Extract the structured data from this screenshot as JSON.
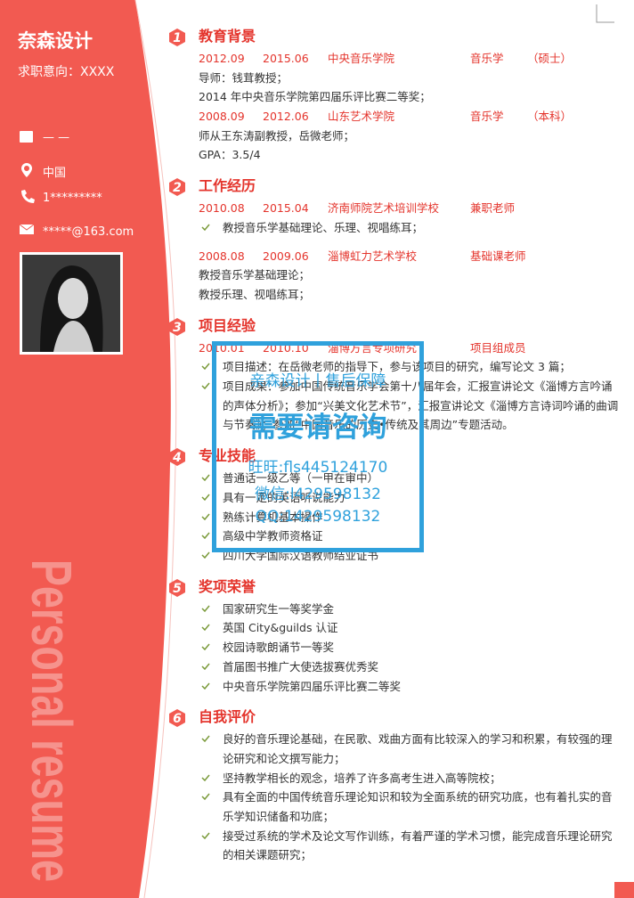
{
  "sidebar": {
    "name": "奈森设计",
    "intention": "求职意向：XXXX",
    "birth": "—  —",
    "location": "中国",
    "phone": "1*********",
    "email": "*****@163.com",
    "deco": "Personal resume"
  },
  "sections": [
    {
      "number": "1",
      "title": "教育背景",
      "rows": [
        {
          "kind": "entry",
          "cells": [
            "2012.09",
            "2015.06",
            "中央音乐学院",
            "音乐学",
            "（硕士）"
          ]
        },
        {
          "kind": "text",
          "text": "导师：钱茸教授；"
        },
        {
          "kind": "text",
          "text": "2014 年中央音乐学院第四届乐评比赛二等奖；"
        },
        {
          "kind": "entry",
          "cells": [
            "2008.09",
            "2012.06",
            "山东艺术学院",
            "音乐学",
            "（本科）"
          ]
        },
        {
          "kind": "text",
          "text": "师从王东涛副教授，岳微老师；"
        },
        {
          "kind": "text",
          "text": "GPA：3.5/4"
        }
      ]
    },
    {
      "number": "2",
      "title": "工作经历",
      "rows": [
        {
          "kind": "entry",
          "cells": [
            "2010.08",
            "2015.04",
            "济南师院艺术培训学校",
            "兼职老师"
          ]
        },
        {
          "kind": "bullet",
          "text": "教授音乐学基础理论、乐理、视唱练耳；"
        },
        {
          "kind": "entry",
          "cells": [
            "2008.08",
            "2009.06",
            "淄博虹力艺术学校",
            "基础课老师"
          ]
        },
        {
          "kind": "text",
          "text": "教授音乐学基础理论；"
        },
        {
          "kind": "text",
          "text": "教授乐理、视唱练耳；"
        }
      ]
    },
    {
      "number": "3",
      "title": "项目经验",
      "rows": [
        {
          "kind": "entry",
          "cells": [
            "2010.01",
            "2010.10",
            "淄博方言专项研究",
            "项目组成员"
          ]
        },
        {
          "kind": "bullet",
          "text": "项目描述：在岳微老师的指导下，参与该项目的研究，编写论文 3 篇；"
        },
        {
          "kind": "bullet",
          "text": "项目成果：参加中国传统音乐学会第十八届年会，汇报宣讲论文《淄博方言吟诵的声体分析》；参加“兴美文化艺术节”，汇报宣讲论文《淄博方言诗词吟诵的曲调与节奏》；参加“中国音乐的历史•传统及其周边”专题活动。"
        }
      ]
    },
    {
      "number": "4",
      "title": "专业技能",
      "rows": [
        {
          "kind": "bullet",
          "text": "普通话一级乙等（一甲在审中）"
        },
        {
          "kind": "bullet",
          "text": "具有一定的英语听说能力"
        },
        {
          "kind": "bullet",
          "text": "熟练计算机基本操作"
        },
        {
          "kind": "bullet",
          "text": "高级中学教师资格证"
        },
        {
          "kind": "bullet",
          "text": "四川大学国际汉语教师结业证书"
        }
      ]
    },
    {
      "number": "5",
      "title": "奖项荣誉",
      "rows": [
        {
          "kind": "bullet",
          "text": "国家研究生一等奖学金"
        },
        {
          "kind": "bullet",
          "text": "英国 City&guilds 认证"
        },
        {
          "kind": "bullet",
          "text": "校园诗歌朗诵节一等奖"
        },
        {
          "kind": "bullet",
          "text": "首届图书推广大使选拔赛优秀奖"
        },
        {
          "kind": "bullet",
          "text": "中央音乐学院第四届乐评比赛二等奖"
        }
      ]
    },
    {
      "number": "6",
      "title": "自我评价",
      "rows": [
        {
          "kind": "bullet",
          "text": "良好的音乐理论基础，在民歌、戏曲方面有比较深入的学习和积累，有较强的理论研究和论文撰写能力；"
        },
        {
          "kind": "bullet",
          "text": "坚持教学相长的观念，培养了许多高考生进入高等院校；"
        },
        {
          "kind": "bullet",
          "text": "具有全面的中国传统音乐理论知识和较为全面系统的研究功底，也有着扎实的音乐学知识储备和功底；"
        },
        {
          "kind": "bullet",
          "text": "接受过系统的学术及论文写作训练，有着严谨的学术习惯，能完成音乐理论研究的相关课题研究；"
        }
      ]
    }
  ],
  "watermark": [
    "亲森设计丨售后保障",
    "需要请咨询",
    "旺旺:fls445124170",
    "微信:l429598132",
    "QQ:1429598132"
  ]
}
